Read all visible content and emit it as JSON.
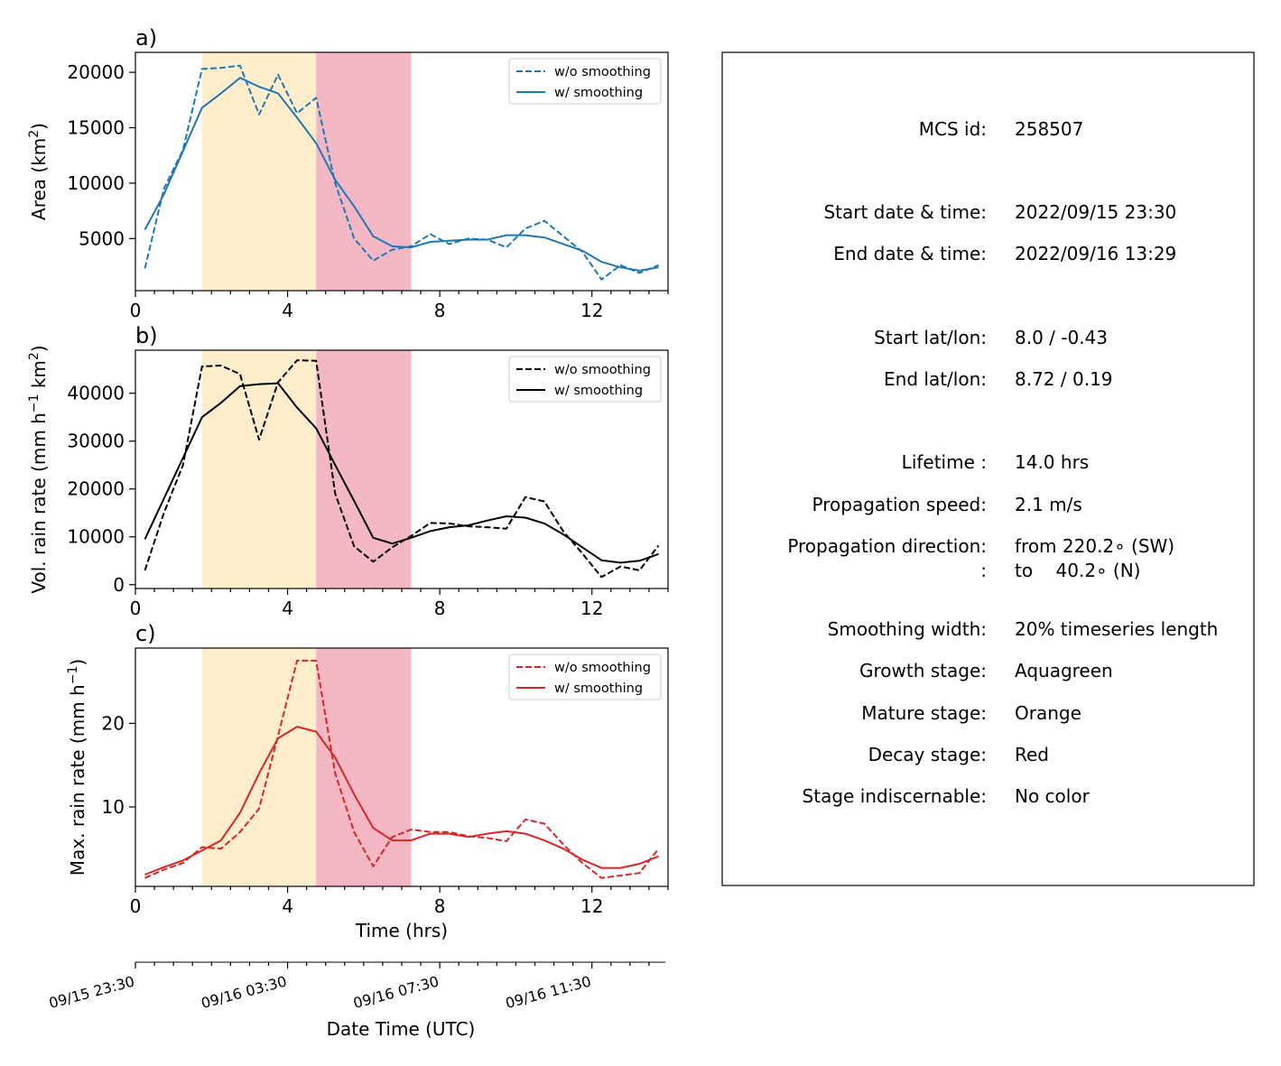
{
  "chart_data": [
    {
      "panel_label": "a)",
      "type": "line",
      "ylabel": "Area  (km",
      "ylabel_sup": "2",
      "ylabel_tail": ")",
      "xlim": [
        0,
        14.0
      ],
      "ylim": [
        300,
        21800
      ],
      "yticks": [
        5000,
        10000,
        15000,
        20000
      ],
      "xticks": [
        0,
        4,
        8,
        12
      ],
      "color": "#1f77b4",
      "shading": [
        {
          "name": "Mature stage",
          "from": 1.75,
          "to": 4.75,
          "color": "#ffedcc"
        },
        {
          "name": "Decay stage",
          "from": 4.75,
          "to": 7.25,
          "color": "#f4b8c4"
        }
      ],
      "series": [
        {
          "name": "w/o smoothing",
          "dash": true,
          "x": [
            0.25,
            0.75,
            1.25,
            1.75,
            2.25,
            2.75,
            3.25,
            3.75,
            4.25,
            4.75,
            5.25,
            5.75,
            6.25,
            6.75,
            7.25,
            7.75,
            8.25,
            8.75,
            9.25,
            9.75,
            10.25,
            10.75,
            11.25,
            11.75,
            12.25,
            12.75,
            13.25,
            13.75
          ],
          "y": [
            2300,
            9500,
            13000,
            20300,
            20400,
            20600,
            16200,
            19800,
            16300,
            17700,
            10000,
            5000,
            3000,
            4000,
            4300,
            5400,
            4500,
            5000,
            4900,
            4200,
            5900,
            6600,
            5200,
            3800,
            1300,
            2600,
            1900,
            2600
          ]
        },
        {
          "name": "w/ smoothing",
          "dash": false,
          "x": [
            0.25,
            0.75,
            1.25,
            1.75,
            2.25,
            2.75,
            3.25,
            3.75,
            4.25,
            4.75,
            5.25,
            5.75,
            6.25,
            6.75,
            7.25,
            7.75,
            8.25,
            8.75,
            9.25,
            9.75,
            10.25,
            10.75,
            11.25,
            11.75,
            12.25,
            12.75,
            13.25,
            13.75
          ],
          "y": [
            5800,
            9000,
            12900,
            16800,
            18100,
            19500,
            18700,
            18100,
            15900,
            13600,
            10300,
            7900,
            5200,
            4300,
            4200,
            4700,
            4800,
            4900,
            4900,
            5300,
            5300,
            5100,
            4500,
            3900,
            2900,
            2400,
            2100,
            2400
          ]
        }
      ],
      "legend": "upper right"
    },
    {
      "panel_label": "b)",
      "type": "line",
      "ylabel": "Vol. rain rate (mm h",
      "ylabel_sup": "−1",
      "ylabel_mid": " km",
      "ylabel_sup2": "2",
      "ylabel_tail": ")",
      "xlim": [
        0,
        14.0
      ],
      "ylim": [
        -800,
        49000
      ],
      "yticks": [
        0,
        10000,
        20000,
        30000,
        40000
      ],
      "xticks": [
        0,
        4,
        8,
        12
      ],
      "color": "#000000",
      "shading": [
        {
          "name": "Mature stage",
          "from": 1.75,
          "to": 4.75,
          "color": "#ffedcc"
        },
        {
          "name": "Decay stage",
          "from": 4.75,
          "to": 7.25,
          "color": "#f4b8c4"
        }
      ],
      "series": [
        {
          "name": "w/o smoothing",
          "dash": true,
          "x": [
            0.25,
            0.75,
            1.25,
            1.75,
            2.25,
            2.75,
            3.25,
            3.75,
            4.25,
            4.75,
            5.25,
            5.75,
            6.25,
            6.75,
            7.25,
            7.75,
            8.25,
            8.75,
            9.25,
            9.75,
            10.25,
            10.75,
            11.25,
            11.75,
            12.25,
            12.75,
            13.25,
            13.75
          ],
          "y": [
            3000,
            15000,
            25000,
            45600,
            45800,
            44000,
            30300,
            42300,
            46900,
            46800,
            19000,
            8000,
            4800,
            7800,
            10200,
            12900,
            12800,
            12200,
            12000,
            11700,
            18300,
            17400,
            11100,
            6500,
            1600,
            3800,
            3000,
            8200
          ]
        },
        {
          "name": "w/ smoothing",
          "dash": false,
          "x": [
            0.25,
            0.75,
            1.25,
            1.75,
            2.25,
            2.75,
            3.25,
            3.75,
            4.25,
            4.75,
            5.25,
            5.75,
            6.25,
            6.75,
            7.25,
            7.75,
            8.25,
            8.75,
            9.25,
            9.75,
            10.25,
            10.75,
            11.25,
            11.75,
            12.25,
            12.75,
            13.25,
            13.75
          ],
          "y": [
            9500,
            18000,
            26500,
            35000,
            38000,
            41500,
            41900,
            42100,
            37000,
            32700,
            25000,
            17500,
            9800,
            8600,
            9800,
            11200,
            12000,
            12400,
            13400,
            14300,
            14000,
            12800,
            10500,
            7800,
            5100,
            4600,
            5000,
            6400
          ]
        }
      ],
      "legend": "upper right"
    },
    {
      "panel_label": "c)",
      "type": "line",
      "ylabel": "Max. rain rate  (mm h",
      "ylabel_sup": "−1",
      "ylabel_tail": ")",
      "xlabel": "Time (hrs)",
      "xlim": [
        0,
        14.0
      ],
      "ylim": [
        0.5,
        29.0
      ],
      "yticks": [
        10,
        20
      ],
      "xticks": [
        0,
        4,
        8,
        12
      ],
      "color": "#d62728",
      "shading": [
        {
          "name": "Mature stage",
          "from": 1.75,
          "to": 4.75,
          "color": "#ffedcc"
        },
        {
          "name": "Decay stage",
          "from": 4.75,
          "to": 7.25,
          "color": "#f4b8c4"
        }
      ],
      "series": [
        {
          "name": "w/o smoothing",
          "dash": true,
          "x": [
            0.25,
            0.75,
            1.25,
            1.75,
            2.25,
            2.75,
            3.25,
            3.75,
            4.25,
            4.75,
            5.25,
            5.75,
            6.25,
            6.75,
            7.25,
            7.75,
            8.25,
            8.75,
            9.25,
            9.75,
            10.25,
            10.75,
            11.25,
            11.75,
            12.25,
            12.75,
            13.25,
            13.75
          ],
          "y": [
            1.5,
            2.5,
            3.3,
            5.2,
            5.0,
            7.0,
            9.8,
            18.5,
            27.5,
            27.5,
            14.0,
            7.0,
            2.9,
            6.4,
            7.3,
            7.0,
            7.0,
            6.5,
            6.3,
            5.9,
            8.5,
            8.0,
            5.5,
            3.3,
            1.5,
            1.8,
            2.1,
            5.0
          ]
        },
        {
          "name": "w/ smoothing",
          "dash": false,
          "x": [
            0.25,
            0.75,
            1.25,
            1.75,
            2.25,
            2.75,
            3.25,
            3.75,
            4.25,
            4.75,
            5.25,
            5.75,
            6.25,
            6.75,
            7.25,
            7.75,
            8.25,
            8.75,
            9.25,
            9.75,
            10.25,
            10.75,
            11.25,
            11.75,
            12.25,
            12.75,
            13.25,
            13.75
          ],
          "y": [
            1.9,
            2.8,
            3.6,
            4.8,
            6.0,
            9.3,
            14.0,
            18.2,
            19.6,
            19.0,
            15.9,
            11.5,
            7.5,
            6.0,
            6.0,
            6.8,
            6.8,
            6.4,
            6.8,
            7.1,
            6.8,
            6.0,
            5.0,
            3.7,
            2.7,
            2.7,
            3.2,
            4.1
          ]
        }
      ],
      "legend": "upper right"
    }
  ],
  "datetime_axis": {
    "label": "Date Time (UTC)",
    "ticks": [
      {
        "x": 0,
        "label": "09/15 23:30"
      },
      {
        "x": 4,
        "label": "09/16 03:30"
      },
      {
        "x": 8,
        "label": "09/16 07:30"
      },
      {
        "x": 12,
        "label": "09/16 11:30"
      }
    ]
  },
  "info": {
    "rows": [
      {
        "key": "MCS id:",
        "value": "258507"
      },
      {
        "key": "Start date & time:",
        "value": "2022/09/15 23:30"
      },
      {
        "key": "End date & time:",
        "value": "2022/09/16 13:29"
      },
      {
        "key": "Start lat/lon:",
        "value": "8.0 / -0.43"
      },
      {
        "key": "End lat/lon:",
        "value": "8.72 / 0.19"
      },
      {
        "key": "Lifetime :",
        "value": "14.0 hrs"
      },
      {
        "key": "Propagation speed:",
        "value": "2.1 m/s"
      },
      {
        "key": "Propagation direction:",
        "value": "from 220.2∘ (SW)"
      },
      {
        "key": ":",
        "value": "to    40.2∘ (N)"
      },
      {
        "key": "Smoothing width:",
        "value": "20% timeseries length"
      },
      {
        "key": "Growth stage:",
        "value": "Aquagreen"
      },
      {
        "key": "Mature stage:",
        "value": "Orange"
      },
      {
        "key": "Decay stage:",
        "value": "Red"
      },
      {
        "key": "Stage indiscernable:",
        "value": "No color"
      }
    ]
  }
}
